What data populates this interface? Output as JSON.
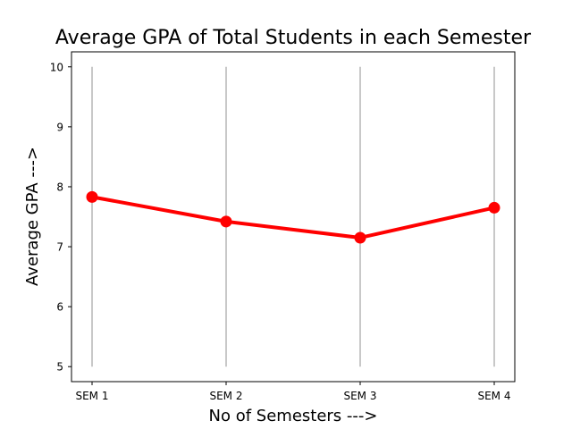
{
  "chart_data": {
    "type": "line",
    "title": "Average GPA of Total Students in each Semester",
    "xlabel": "No of Semesters --->",
    "ylabel": "Average GPA --->",
    "categories": [
      "SEM 1",
      "SEM 2",
      "SEM 3",
      "SEM 4"
    ],
    "yticks": [
      "5",
      "6",
      "7",
      "8",
      "9",
      "10"
    ],
    "ylim": [
      4.75,
      10.25
    ],
    "gridlines": {
      "from": 5,
      "to": 10,
      "color": "#c8c8c8"
    },
    "series": [
      {
        "values": [
          7.83,
          7.42,
          7.15,
          7.65
        ],
        "color": "#ff0000"
      }
    ],
    "grid": "vertical",
    "legend": "none"
  }
}
